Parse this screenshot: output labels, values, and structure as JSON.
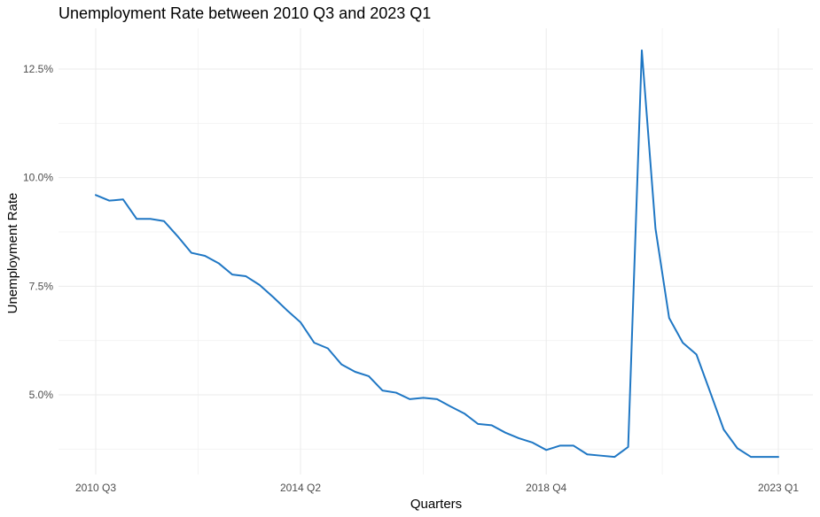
{
  "chart_data": {
    "type": "line",
    "title": "Unemployment Rate between 2010 Q3 and 2023 Q1",
    "xlabel": "Quarters",
    "ylabel": "Unemployment Rate",
    "x_tick_labels": [
      "2010 Q3",
      "2014 Q2",
      "2018 Q4",
      "2023 Q1"
    ],
    "x_tick_index": [
      0,
      15,
      33,
      50
    ],
    "y_ticks": [
      5.0,
      7.5,
      10.0,
      12.5
    ],
    "y_tick_labels": [
      "5.0%",
      "7.5%",
      "10.0%",
      "12.5%"
    ],
    "ylim": [
      3.4,
      13.3
    ],
    "grid": true,
    "line_color": "#1f77c4",
    "categories": [
      "2010 Q3",
      "2010 Q4",
      "2011 Q1",
      "2011 Q2",
      "2011 Q3",
      "2011 Q4",
      "2012 Q1",
      "2012 Q2",
      "2012 Q3",
      "2012 Q4",
      "2013 Q1",
      "2013 Q2",
      "2013 Q3",
      "2013 Q4",
      "2014 Q1",
      "2014 Q2",
      "2014 Q3",
      "2014 Q4",
      "2015 Q1",
      "2015 Q2",
      "2015 Q3",
      "2015 Q4",
      "2016 Q1",
      "2016 Q2",
      "2016 Q3",
      "2016 Q4",
      "2017 Q1",
      "2017 Q2",
      "2017 Q3",
      "2017 Q4",
      "2018 Q1",
      "2018 Q2",
      "2018 Q3",
      "2018 Q4",
      "2019 Q1",
      "2019 Q2",
      "2019 Q3",
      "2019 Q4",
      "2020 Q1",
      "2020 Q2",
      "2020 Q3",
      "2020 Q4",
      "2021 Q1",
      "2021 Q2",
      "2021 Q3",
      "2021 Q4",
      "2022 Q1",
      "2022 Q2",
      "2022 Q3",
      "2022 Q4",
      "2023 Q1"
    ],
    "values": [
      9.6,
      9.47,
      9.5,
      9.05,
      9.05,
      9.0,
      8.65,
      8.27,
      8.2,
      8.03,
      7.77,
      7.73,
      7.53,
      7.25,
      6.95,
      6.67,
      6.2,
      6.07,
      5.7,
      5.53,
      5.43,
      5.1,
      5.05,
      4.9,
      4.93,
      4.9,
      4.73,
      4.57,
      4.33,
      4.3,
      4.13,
      4.0,
      3.9,
      3.73,
      3.83,
      3.83,
      3.63,
      3.6,
      3.57,
      3.8,
      12.93,
      8.83,
      6.77,
      6.2,
      5.93,
      5.07,
      4.2,
      3.77,
      3.57,
      3.57,
      3.57
    ]
  }
}
